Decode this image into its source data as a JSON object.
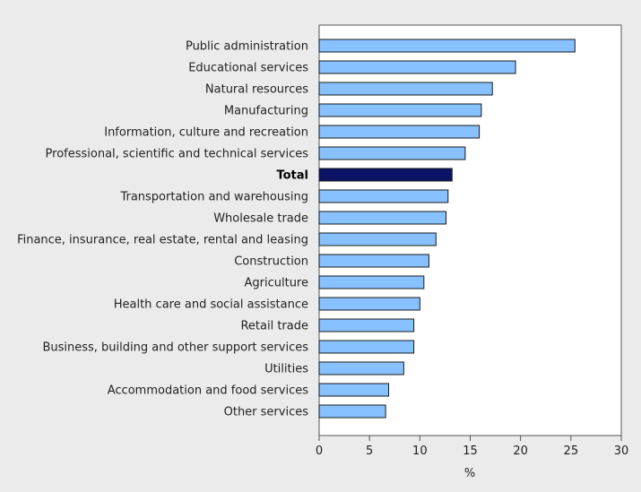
{
  "chart_data": {
    "type": "bar",
    "orientation": "horizontal",
    "categories": [
      "Public administration",
      "Educational services",
      "Natural resources",
      "Manufacturing",
      "Information, culture and recreation",
      "Professional, scientific and technical services",
      "Total",
      "Transportation and warehousing",
      "Wholesale trade",
      "Finance, insurance, real estate, rental and leasing",
      "Construction",
      "Agriculture",
      "Health care and social assistance",
      "Retail trade",
      "Business, building and other support services",
      "Utilities",
      "Accommodation and food services",
      "Other services"
    ],
    "values": [
      25.4,
      19.5,
      17.2,
      16.1,
      15.9,
      14.5,
      13.2,
      12.8,
      12.6,
      11.6,
      10.9,
      10.4,
      10.0,
      9.4,
      9.4,
      8.4,
      6.9,
      6.6
    ],
    "highlight_category": "Total",
    "xlabel": "%",
    "xlim": [
      0,
      30
    ],
    "xticks": [
      "0",
      "5",
      "10",
      "15",
      "20",
      "25",
      "30"
    ],
    "grid": false,
    "colors": {
      "bar": "#87c1ff",
      "highlight_bar": "#0b1366",
      "bar_outline": "#1a1a1a",
      "plot_background": "#ffffff",
      "page_background": "#ebebeb"
    }
  }
}
